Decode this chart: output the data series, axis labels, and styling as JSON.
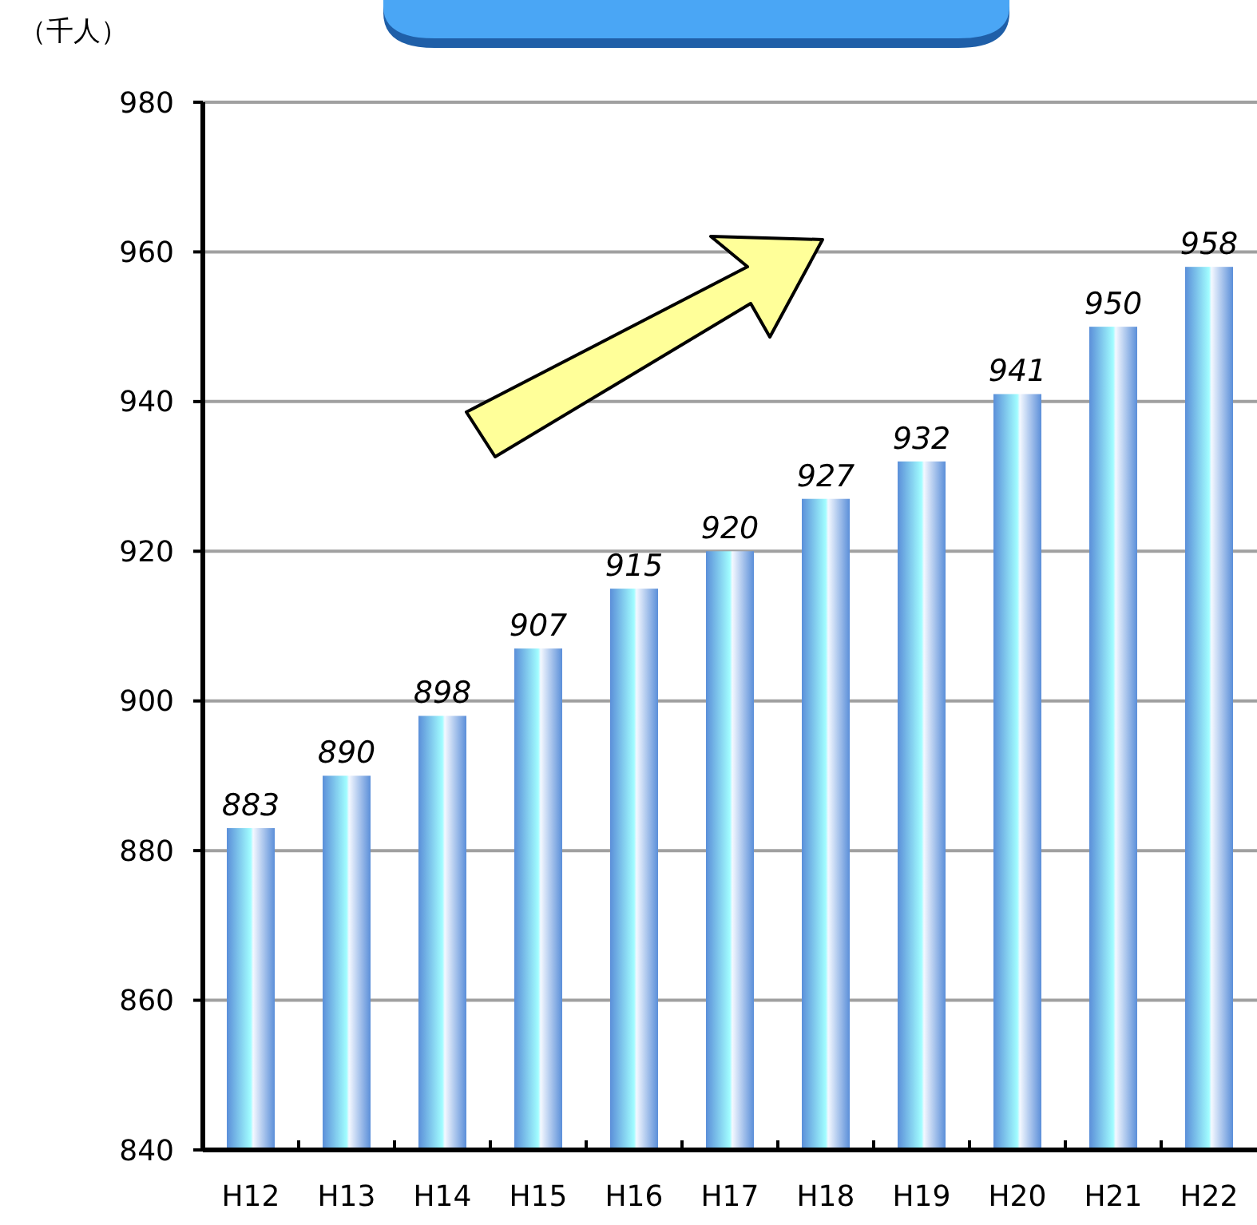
{
  "chart_data": {
    "type": "bar",
    "ylabel": "（千人）",
    "categories": [
      "H12",
      "H13",
      "H14",
      "H15",
      "H16",
      "H17",
      "H18",
      "H19",
      "H20",
      "H21",
      "H22"
    ],
    "values": [
      883,
      890,
      898,
      907,
      915,
      920,
      927,
      932,
      941,
      950,
      958
    ],
    "color": "#5b8fd9",
    "ylim": [
      840,
      980
    ],
    "yticks": [
      840,
      860,
      880,
      900,
      920,
      940,
      960,
      980
    ],
    "grid": "y",
    "data_labels": true
  }
}
